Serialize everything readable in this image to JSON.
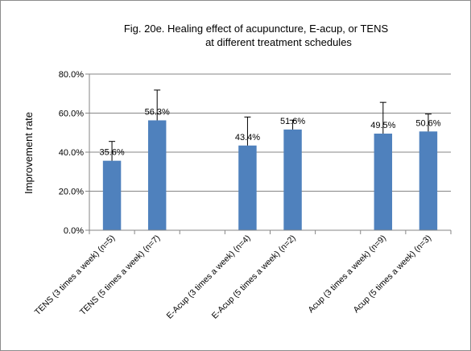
{
  "chart_data": {
    "type": "bar",
    "title_lines": [
      "Fig. 20e. Healing effect of acupuncture,  E-acup, or TENS",
      "at different treatment schedules"
    ],
    "ylabel": "Improvement rate",
    "xlabel": "",
    "ylim": [
      0,
      80
    ],
    "y_ticks": [
      "0.0%",
      "20.0%",
      "40.0%",
      "60.0%",
      "80.0%"
    ],
    "y_tick_values": [
      0,
      20,
      40,
      60,
      80
    ],
    "categories": [
      "TENS (3 times a week) (n=5)",
      "TENS (5 times a week) (n=7)",
      "",
      "E-Acup (3 times a week) (n=4)",
      "E-Acup (5 times a week) (n=2)",
      "",
      "Acup (3 times a week) (n=9)",
      "Acup (5 times a week) (n=3)"
    ],
    "values": [
      35.6,
      56.3,
      null,
      43.4,
      51.6,
      null,
      49.5,
      50.6
    ],
    "labels": [
      "35.6%",
      "56.3%",
      "",
      "43.4%",
      "51.6%",
      "",
      "49.5%",
      "50.6%"
    ],
    "error_upper": [
      45.5,
      71.8,
      null,
      58.0,
      56.4,
      null,
      65.5,
      59.5
    ],
    "bar_color": "#4f81bd",
    "gridlines": true,
    "legend": "none"
  }
}
